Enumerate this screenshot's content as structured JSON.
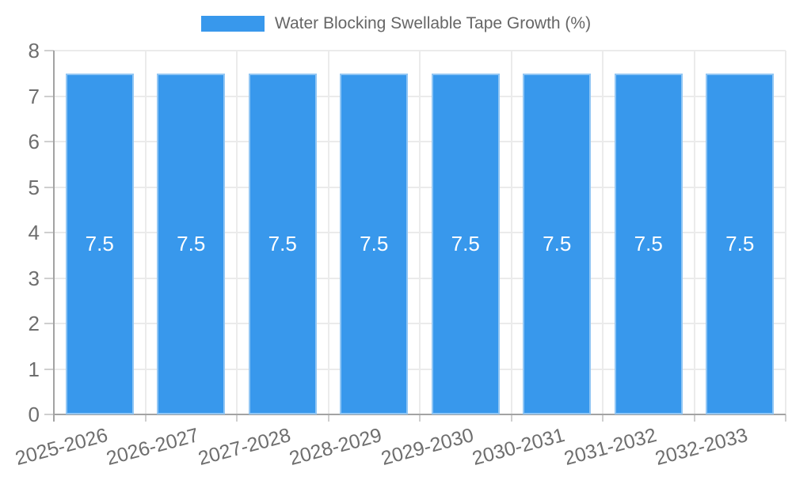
{
  "legend": {
    "items": [
      {
        "label": "Water Blocking Swellable Tape Growth (%)",
        "color": "#3898EC"
      }
    ]
  },
  "chart_data": {
    "type": "bar",
    "title": "Water Blocking Swellable Tape Growth (%)",
    "categories": [
      "2025-2026",
      "2026-2027",
      "2027-2028",
      "2028-2029",
      "2029-2030",
      "2030-2031",
      "2031-2032",
      "2032-2033"
    ],
    "series": [
      {
        "name": "Water Blocking Swellable Tape Growth (%)",
        "values": [
          7.5,
          7.5,
          7.5,
          7.5,
          7.5,
          7.5,
          7.5,
          7.5
        ]
      }
    ],
    "value_labels": [
      "7.5",
      "7.5",
      "7.5",
      "7.5",
      "7.5",
      "7.5",
      "7.5",
      "7.5"
    ],
    "xlabel": "",
    "ylabel": "",
    "ylim": [
      0,
      8
    ],
    "yticks": [
      0,
      1,
      2,
      3,
      4,
      5,
      6,
      7,
      8
    ],
    "grid": true,
    "legend_position": "top-center",
    "x_label_rotation_deg": -15,
    "colors": {
      "bar": "#3898EC",
      "grid": "#ebebeb",
      "axis": "#a3a3a3",
      "tick": "#cfcfcf",
      "tick_text": "#6e6e6e",
      "legend_text": "#666666",
      "value_label_text": "#ffffff"
    }
  }
}
